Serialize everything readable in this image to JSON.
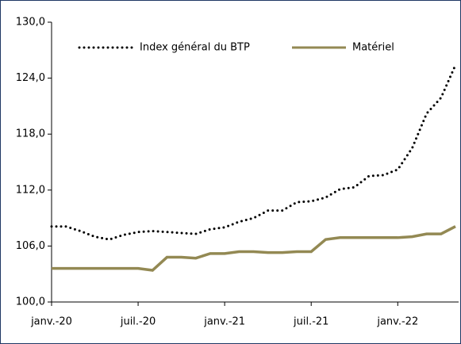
{
  "chart_data": {
    "type": "line",
    "categories": [
      "janv.-20",
      null,
      null,
      null,
      null,
      null,
      "juil.-20",
      null,
      null,
      null,
      null,
      null,
      "janv.-21",
      null,
      null,
      null,
      null,
      null,
      "juil.-21",
      null,
      null,
      null,
      null,
      null,
      "janv.-22",
      null,
      null,
      null,
      null
    ],
    "series": [
      {
        "name": "Index général du BTP",
        "color": "#000000",
        "style": "dotted",
        "values": [
          108.1,
          108.1,
          107.6,
          107.0,
          106.7,
          107.2,
          107.5,
          107.6,
          107.5,
          107.4,
          107.3,
          107.8,
          108.0,
          108.6,
          109.0,
          109.8,
          109.8,
          110.7,
          110.8,
          111.2,
          112.1,
          112.3,
          113.5,
          113.6,
          114.2,
          116.5,
          120.2,
          121.9,
          125.4
        ]
      },
      {
        "name": "Matériel",
        "color": "#938953",
        "style": "solid",
        "values": [
          103.6,
          103.6,
          103.6,
          103.6,
          103.6,
          103.6,
          103.6,
          103.4,
          104.8,
          104.8,
          104.7,
          105.2,
          105.2,
          105.4,
          105.4,
          105.3,
          105.3,
          105.4,
          105.4,
          106.7,
          106.9,
          106.9,
          106.9,
          106.9,
          106.9,
          107.0,
          107.3,
          107.3,
          108.1
        ]
      }
    ],
    "ylim": [
      100,
      130
    ],
    "yticks": [
      {
        "value": 100,
        "label": "100,0"
      },
      {
        "value": 106,
        "label": "106,0"
      },
      {
        "value": 112,
        "label": "112,0"
      },
      {
        "value": 118,
        "label": "118,0"
      },
      {
        "value": 124,
        "label": "124,0"
      },
      {
        "value": 130,
        "label": "130,0"
      }
    ],
    "legend": "top"
  }
}
